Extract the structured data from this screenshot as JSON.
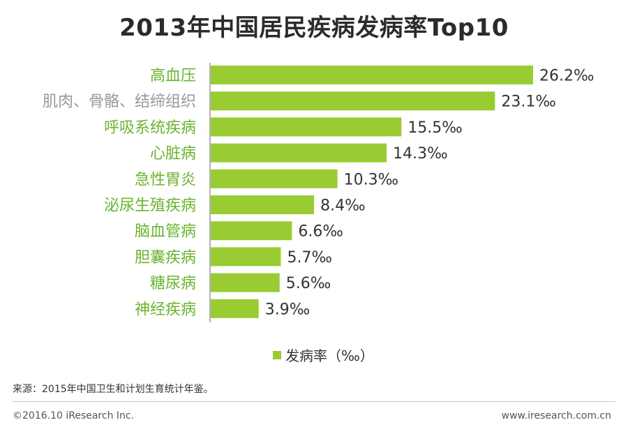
{
  "chart_data": {
    "type": "bar",
    "orientation": "horizontal",
    "title": "2013年中国居民疾病发病率Top10",
    "categories": [
      "高血压",
      "肌肉、骨骼、结缔组织",
      "呼吸系统疾病",
      "心脏病",
      "急性胃炎",
      "泌尿生殖疾病",
      "脑血管病",
      "胆囊疾病",
      "糖尿病",
      "神经疾病"
    ],
    "values": [
      26.2,
      23.1,
      15.5,
      14.3,
      10.3,
      8.4,
      6.6,
      5.7,
      5.6,
      3.9
    ],
    "value_labels": [
      "26.2‰",
      "23.1‰",
      "15.5‰",
      "14.3‰",
      "10.3‰",
      "8.4‰",
      "6.6‰",
      "5.7‰",
      "5.6‰",
      "3.9‰"
    ],
    "category_label_colors": [
      "#6ab42d",
      "#999999",
      "#6ab42d",
      "#6ab42d",
      "#6ab42d",
      "#6ab42d",
      "#6ab42d",
      "#6ab42d",
      "#6ab42d",
      "#6ab42d"
    ],
    "xlim": [
      0,
      26.2
    ],
    "series": [
      {
        "name": "发病率（‰）",
        "values": [
          26.2,
          23.1,
          15.5,
          14.3,
          10.3,
          8.4,
          6.6,
          5.7,
          5.6,
          3.9
        ]
      }
    ],
    "legend": "bottom-center",
    "grid": false,
    "bar_color": "#99cc33"
  },
  "legend_label": "发病率（‰）",
  "source": "来源：2015年中国卫生和计划生育统计年鉴。",
  "footer": {
    "copyright": "©2016.10 iResearch Inc.",
    "website": "www.iresearch.com.cn"
  }
}
